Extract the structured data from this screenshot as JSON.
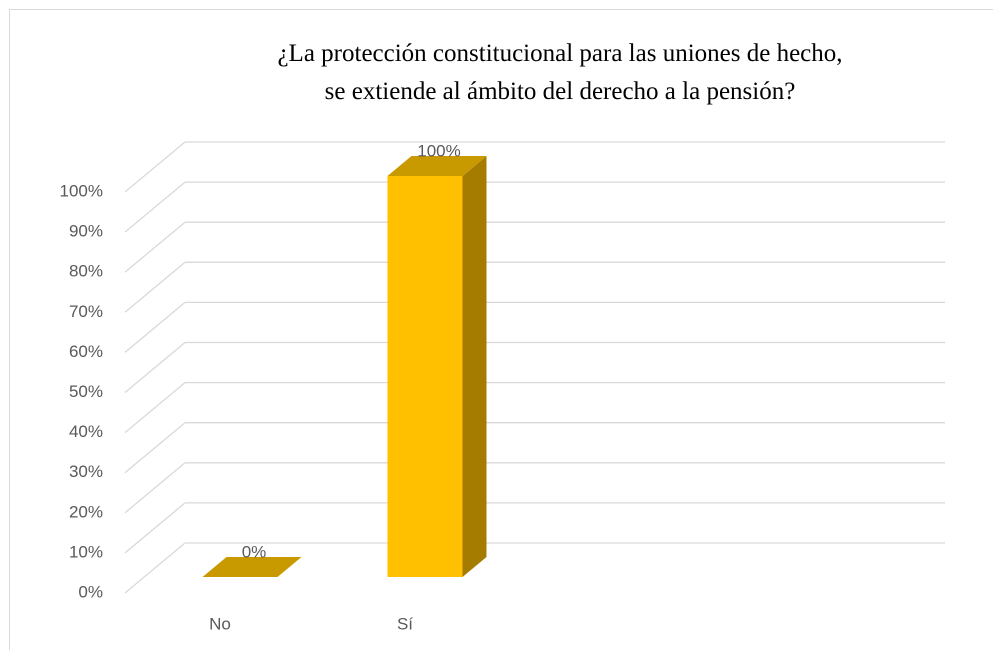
{
  "chart_data": {
    "type": "bar3d",
    "title": "¿La protección constitucional para las uniones de hecho, se extiende al ámbito del derecho a la pensión?",
    "categories": [
      "No",
      "Sí"
    ],
    "values": [
      0,
      100
    ],
    "value_labels": [
      "0%",
      "100%"
    ],
    "color": "#FFC000",
    "ylim": [
      0,
      100
    ],
    "yticks": [
      {
        "value": 0,
        "label": "0%"
      },
      {
        "value": 10,
        "label": "10%"
      },
      {
        "value": 20,
        "label": "20%"
      },
      {
        "value": 30,
        "label": "30%"
      },
      {
        "value": 40,
        "label": "40%"
      },
      {
        "value": 50,
        "label": "50%"
      },
      {
        "value": 60,
        "label": "60%"
      },
      {
        "value": 70,
        "label": "70%"
      },
      {
        "value": 80,
        "label": "80%"
      },
      {
        "value": 90,
        "label": "90%"
      },
      {
        "value": 100,
        "label": "100%"
      }
    ],
    "grid": true
  }
}
